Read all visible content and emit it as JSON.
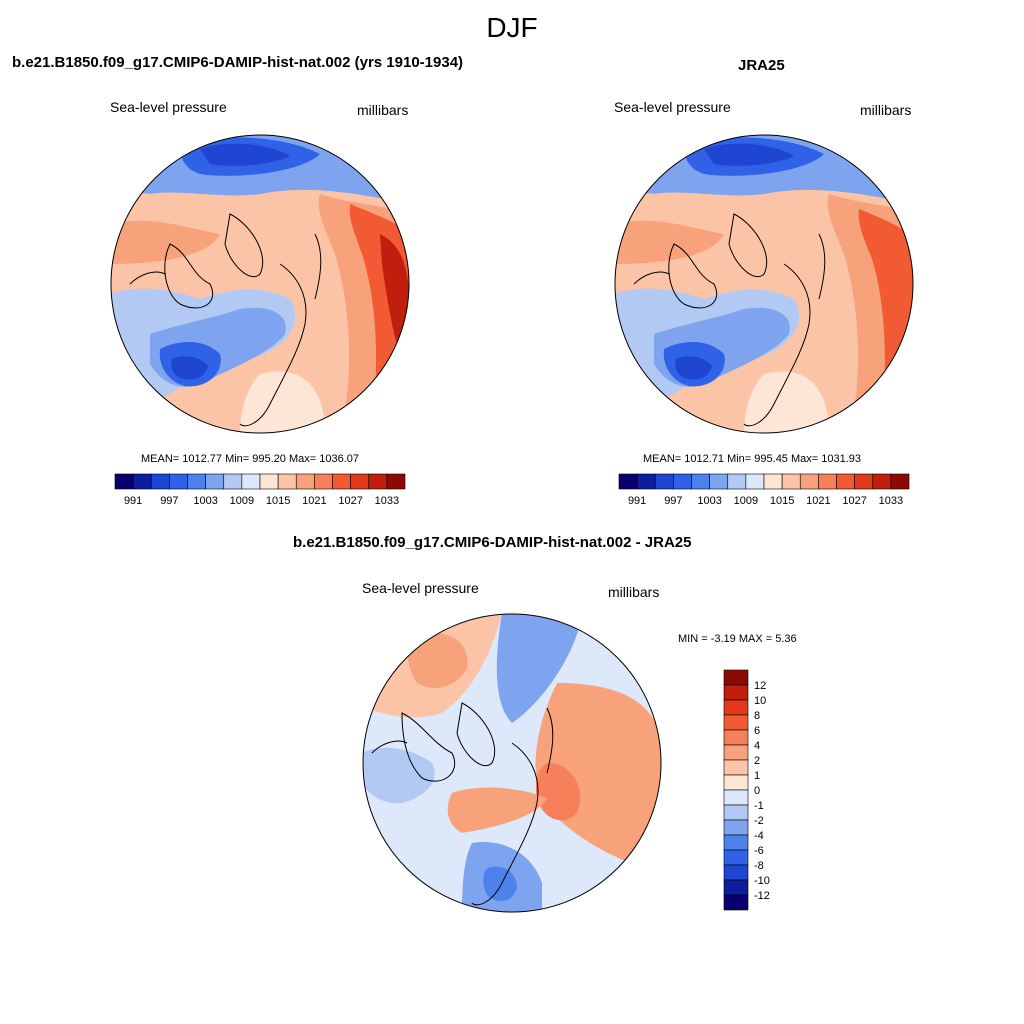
{
  "figure": {
    "title": "DJF"
  },
  "colors": {
    "abs_levels": [
      "#08006e",
      "#0a1e9e",
      "#1e46d2",
      "#2f62e6",
      "#4d82ec",
      "#7ea4ef",
      "#b2c9f4",
      "#dde8fa",
      "#fde6d6",
      "#fbc4a6",
      "#f8a27c",
      "#f5805a",
      "#f15a33",
      "#e03a1a",
      "#c01f0d",
      "#8c0a04"
    ],
    "diff_levels": [
      "#08006e",
      "#0a1e9e",
      "#1e46d2",
      "#2f62e6",
      "#4d82ec",
      "#7ea4ef",
      "#b2c9f4",
      "#dde8fa",
      "#fde6d6",
      "#fbc4a6",
      "#f8a27c",
      "#f5805a",
      "#f15a33",
      "#e03a1a",
      "#c01f0d",
      "#8c0a04"
    ]
  },
  "chart_data": [
    {
      "type": "heatmap",
      "title": "b.e21.B1850.f09_g17.CMIP6-DAMIP-hist-nat.002 (yrs 1910-1934)",
      "left_label": "Sea-level pressure",
      "right_label": "millibars",
      "stats": "MEAN= 1012.77  Min= 995.20  Max= 1036.07",
      "mean": 1012.77,
      "min": 995.2,
      "max": 1036.07,
      "colorbar_ticks": [
        "991",
        "997",
        "1003",
        "1009",
        "1015",
        "1021",
        "1027",
        "1033"
      ]
    },
    {
      "type": "heatmap",
      "title": "JRA25",
      "left_label": "Sea-level pressure",
      "right_label": "millibars",
      "stats": "MEAN= 1012.71  Min= 995.45  Max= 1031.93",
      "mean": 1012.71,
      "min": 995.45,
      "max": 1031.93,
      "colorbar_ticks": [
        "991",
        "997",
        "1003",
        "1009",
        "1015",
        "1021",
        "1027",
        "1033"
      ]
    },
    {
      "type": "heatmap",
      "title": "b.e21.B1850.f09_g17.CMIP6-DAMIP-hist-nat.002 - JRA25",
      "left_label": "Sea-level pressure",
      "right_label": "millibars",
      "stats": "MIN =  -3.19 MAX =   5.36",
      "min": -3.19,
      "max": 5.36,
      "colorbar_ticks": [
        "12",
        "10",
        "8",
        "6",
        "4",
        "2",
        "1",
        "0",
        "-1",
        "-2",
        "-4",
        "-6",
        "-8",
        "-10",
        "-12"
      ]
    }
  ]
}
